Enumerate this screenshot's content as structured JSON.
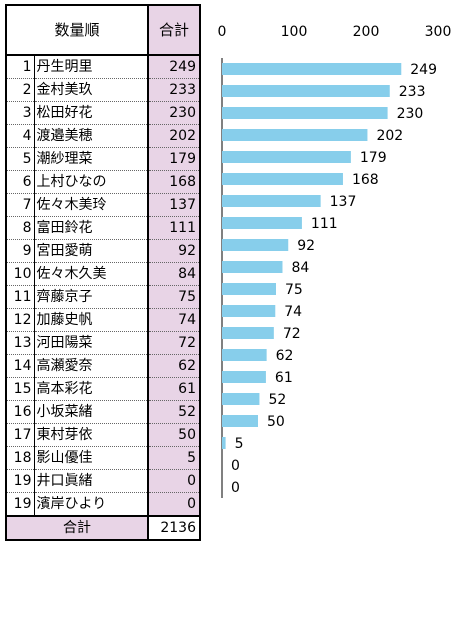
{
  "table": {
    "header_title": "数量順",
    "header_total": "合計",
    "footer_label": "合計",
    "footer_total": "2136",
    "rows": [
      {
        "rank": "1",
        "name": "丹生明里",
        "value": "249"
      },
      {
        "rank": "2",
        "name": "金村美玖",
        "value": "233"
      },
      {
        "rank": "3",
        "name": "松田好花",
        "value": "230"
      },
      {
        "rank": "4",
        "name": "渡邉美穂",
        "value": "202"
      },
      {
        "rank": "5",
        "name": "潮紗理菜",
        "value": "179"
      },
      {
        "rank": "6",
        "name": "上村ひなの",
        "value": "168"
      },
      {
        "rank": "7",
        "name": "佐々木美玲",
        "value": "137"
      },
      {
        "rank": "8",
        "name": "富田鈴花",
        "value": "111"
      },
      {
        "rank": "9",
        "name": "宮田愛萌",
        "value": "92"
      },
      {
        "rank": "10",
        "name": "佐々木久美",
        "value": "84"
      },
      {
        "rank": "11",
        "name": "齊藤京子",
        "value": "75"
      },
      {
        "rank": "12",
        "name": "加藤史帆",
        "value": "74"
      },
      {
        "rank": "13",
        "name": "河田陽菜",
        "value": "72"
      },
      {
        "rank": "14",
        "name": "高瀬愛奈",
        "value": "62"
      },
      {
        "rank": "15",
        "name": "高本彩花",
        "value": "61"
      },
      {
        "rank": "16",
        "name": "小坂菜緒",
        "value": "52"
      },
      {
        "rank": "17",
        "name": "東村芽依",
        "value": "50"
      },
      {
        "rank": "18",
        "name": "影山優佳",
        "value": "5"
      },
      {
        "rank": "19",
        "name": "井口眞緒",
        "value": "0"
      },
      {
        "rank": "19",
        "name": "濱岸ひより",
        "value": "0"
      }
    ]
  },
  "chart_data": {
    "type": "bar",
    "orientation": "horizontal",
    "categories": [
      "丹生明里",
      "金村美玖",
      "松田好花",
      "渡邉美穂",
      "潮紗理菜",
      "上村ひなの",
      "佐々木美玲",
      "富田鈴花",
      "宮田愛萌",
      "佐々木久美",
      "齊藤京子",
      "加藤史帆",
      "河田陽菜",
      "高瀬愛奈",
      "高本彩花",
      "小坂菜緒",
      "東村芽依",
      "影山優佳",
      "井口眞緒",
      "濱岸ひより"
    ],
    "values": [
      249,
      233,
      230,
      202,
      179,
      168,
      137,
      111,
      92,
      84,
      75,
      74,
      72,
      62,
      61,
      52,
      50,
      5,
      0,
      0
    ],
    "xlim": [
      0,
      300
    ],
    "ticks": [
      "0",
      "100",
      "200",
      "300"
    ],
    "grid": false,
    "bar_color": "#87ceeb"
  }
}
